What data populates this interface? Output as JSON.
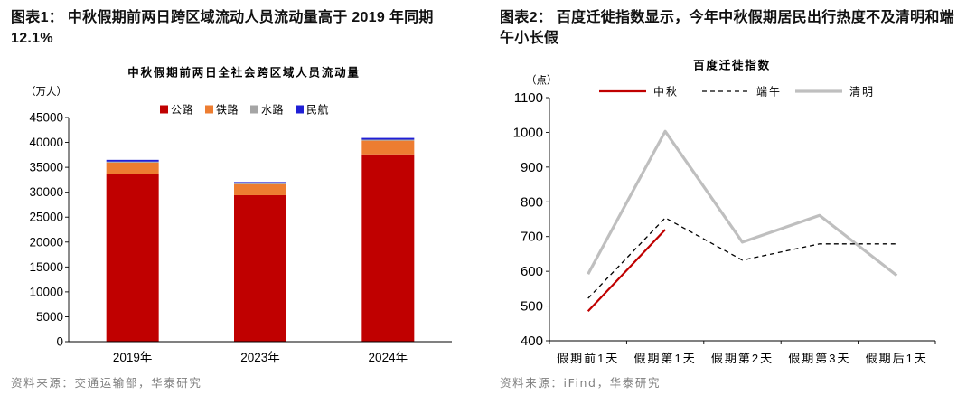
{
  "figures": [
    {
      "title_lines": [
        "图表1： 中秋假期前两日跨区域流动人员流动量高于 2019 年同期",
        "12.1%"
      ],
      "source": "资料来源：交通运输部，华泰研究"
    },
    {
      "title_lines": [
        "图表2： 百度迁徙指数显示，今年中秋假期居民出行热度不及清明和端",
        "午小长假"
      ],
      "source": "资料来源：iFind，华泰研究"
    }
  ],
  "chart_data": [
    {
      "type": "bar",
      "stacked": true,
      "title": "中秋假期前两日全社会跨区域人员流动量",
      "ylabel": "（万人）",
      "categories": [
        "2019年",
        "2023年",
        "2024年"
      ],
      "series": [
        {
          "name": "公路",
          "color": "#C00000",
          "values": [
            33600,
            29400,
            37600
          ]
        },
        {
          "name": "铁路",
          "color": "#ED7D31",
          "values": [
            2350,
            2200,
            2750
          ]
        },
        {
          "name": "水路",
          "color": "#A5A5A5",
          "values": [
            200,
            150,
            200
          ]
        },
        {
          "name": "民航",
          "color": "#1F1FD6",
          "values": [
            350,
            300,
            350
          ]
        }
      ],
      "ylim": [
        0,
        45000
      ],
      "yticks": [
        0,
        5000,
        10000,
        15000,
        20000,
        25000,
        30000,
        35000,
        40000,
        45000
      ],
      "legend": "top",
      "grid": false
    },
    {
      "type": "line",
      "title": "百度迁徙指数",
      "ylabel": "（点）",
      "categories": [
        "假期前1天",
        "假期第1天",
        "假期第2天",
        "假期第3天",
        "假期后1天"
      ],
      "series": [
        {
          "name": "中秋",
          "color": "#C00000",
          "dashed": false,
          "values": [
            485,
            720,
            null,
            null,
            null
          ]
        },
        {
          "name": "端午",
          "color": "#000000",
          "dashed": true,
          "values": [
            522,
            754,
            632,
            679,
            679
          ]
        },
        {
          "name": "清明",
          "color": "#BFBFBF",
          "dashed": false,
          "values": [
            592,
            1003,
            684,
            761,
            588
          ]
        }
      ],
      "ylim": [
        400,
        1100
      ],
      "yticks": [
        400,
        500,
        600,
        700,
        800,
        900,
        1000,
        1100
      ],
      "legend": "top",
      "grid": false
    }
  ]
}
